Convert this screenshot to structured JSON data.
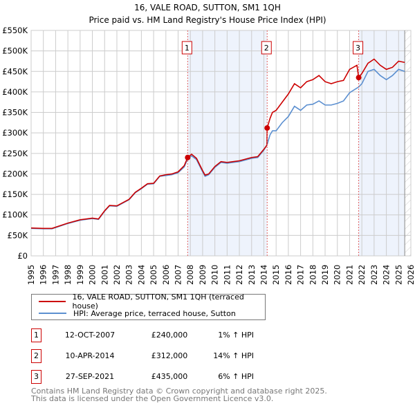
{
  "title": "16, VALE ROAD, SUTTON, SM1 1QH",
  "subtitle": "Price paid vs. HM Land Registry's House Price Index (HPI)",
  "chart_data": {
    "type": "line",
    "title": "16, VALE ROAD, SUTTON, SM1 1QH",
    "subtitle": "Price paid vs. HM Land Registry's House Price Index (HPI)",
    "xlim": [
      1995,
      2026
    ],
    "ylim": [
      0,
      550000
    ],
    "grid": true,
    "y_ticks": [
      "£0",
      "£50K",
      "£100K",
      "£150K",
      "£200K",
      "£250K",
      "£300K",
      "£350K",
      "£400K",
      "£450K",
      "£500K",
      "£550K"
    ],
    "x_ticks": [
      "1995",
      "1996",
      "1997",
      "1998",
      "1999",
      "2000",
      "2001",
      "2002",
      "2003",
      "2004",
      "2005",
      "2006",
      "2007",
      "2008",
      "2009",
      "2010",
      "2011",
      "2012",
      "2013",
      "2014",
      "2015",
      "2016",
      "2017",
      "2018",
      "2019",
      "2020",
      "2021",
      "2022",
      "2023",
      "2024",
      "2025",
      "2026"
    ],
    "shaded_periods": [
      [
        2007.78,
        2014.27
      ],
      [
        2021.74,
        2025.5
      ]
    ],
    "data_end": 2025.5,
    "colors": {
      "property": "#cc0000",
      "hpi": "#5b8fd0",
      "shade": "#eef3fc"
    },
    "series": [
      {
        "name": "16, VALE ROAD, SUTTON, SM1 1QH (terraced house)",
        "x": [
          1995,
          1996,
          1996.7,
          1997,
          1998,
          1999,
          2000,
          2000.5,
          2001,
          2001.4,
          2002,
          2002.5,
          2003,
          2003.5,
          2004,
          2004.5,
          2005,
          2005.5,
          2006,
          2006.5,
          2007,
          2007.5,
          2007.78,
          2008.1,
          2008.5,
          2009,
          2009.2,
          2009.5,
          2010,
          2010.5,
          2011,
          2011.5,
          2012,
          2012.5,
          2013,
          2013.5,
          2014,
          2014.25,
          2014.27,
          2014.5,
          2014.7,
          2015,
          2015.5,
          2016,
          2016.5,
          2017,
          2017.5,
          2018,
          2018.5,
          2019,
          2019.5,
          2020,
          2020.5,
          2021,
          2021.6,
          2021.74,
          2022,
          2022.5,
          2023,
          2023.5,
          2024,
          2024.5,
          2025,
          2025.5
        ],
        "values": [
          68000,
          67000,
          67000,
          70000,
          80000,
          88000,
          92000,
          90000,
          110000,
          123000,
          122000,
          130000,
          138000,
          155000,
          165000,
          176000,
          177000,
          195000,
          198000,
          200000,
          205000,
          220000,
          240000,
          248000,
          238000,
          208000,
          197000,
          200000,
          218000,
          230000,
          228000,
          230000,
          232000,
          236000,
          240000,
          242000,
          260000,
          270000,
          312000,
          335000,
          350000,
          355000,
          375000,
          395000,
          420000,
          410000,
          425000,
          430000,
          440000,
          425000,
          420000,
          425000,
          428000,
          455000,
          465000,
          435000,
          445000,
          470000,
          480000,
          465000,
          455000,
          460000,
          475000,
          472000
        ]
      },
      {
        "name": "HPI: Average price, terraced house, Sutton",
        "x": [
          1995,
          1996,
          1996.7,
          1997,
          1998,
          1999,
          2000,
          2000.5,
          2001,
          2001.4,
          2002,
          2002.5,
          2003,
          2003.5,
          2004,
          2004.5,
          2005,
          2005.5,
          2006,
          2006.5,
          2007,
          2007.5,
          2007.78,
          2008.1,
          2008.5,
          2009,
          2009.2,
          2009.5,
          2010,
          2010.5,
          2011,
          2011.5,
          2012,
          2012.5,
          2013,
          2013.5,
          2014,
          2014.27,
          2014.5,
          2014.7,
          2015,
          2015.5,
          2016,
          2016.5,
          2017,
          2017.5,
          2018,
          2018.5,
          2019,
          2019.5,
          2020,
          2020.5,
          2021,
          2021.74,
          2022,
          2022.5,
          2023,
          2023.5,
          2024,
          2024.5,
          2025,
          2025.5
        ],
        "values": [
          67000,
          66000,
          66000,
          69000,
          79000,
          87000,
          91000,
          89000,
          109000,
          122000,
          121000,
          129000,
          137000,
          154000,
          164000,
          175000,
          176000,
          194000,
          196000,
          198000,
          203000,
          217000,
          237000,
          244000,
          235000,
          205000,
          194000,
          198000,
          216000,
          228000,
          226000,
          228000,
          230000,
          234000,
          238000,
          240000,
          258000,
          272000,
          295000,
          305000,
          305000,
          325000,
          340000,
          365000,
          355000,
          368000,
          370000,
          378000,
          368000,
          368000,
          372000,
          378000,
          398000,
          412000,
          420000,
          450000,
          455000,
          440000,
          430000,
          440000,
          455000,
          450000
        ]
      }
    ],
    "sales": [
      {
        "label": "1",
        "x": 2007.78,
        "value": 240000
      },
      {
        "label": "2",
        "x": 2014.27,
        "value": 312000
      },
      {
        "label": "3",
        "x": 2021.74,
        "value": 435000
      }
    ]
  },
  "legend": {
    "property": "16, VALE ROAD, SUTTON, SM1 1QH (terraced house)",
    "hpi": "HPI: Average price, terraced house, Sutton"
  },
  "transactions": [
    {
      "num": "1",
      "date": "12-OCT-2007",
      "price": "£240,000",
      "hpi": "1% ↑ HPI"
    },
    {
      "num": "2",
      "date": "10-APR-2014",
      "price": "£312,000",
      "hpi": "14% ↑ HPI"
    },
    {
      "num": "3",
      "date": "27-SEP-2021",
      "price": "£435,000",
      "hpi": "6% ↑ HPI"
    }
  ],
  "footer": {
    "line1": "Contains HM Land Registry data © Crown copyright and database right 2025.",
    "line2": "This data is licensed under the Open Government Licence v3.0."
  }
}
